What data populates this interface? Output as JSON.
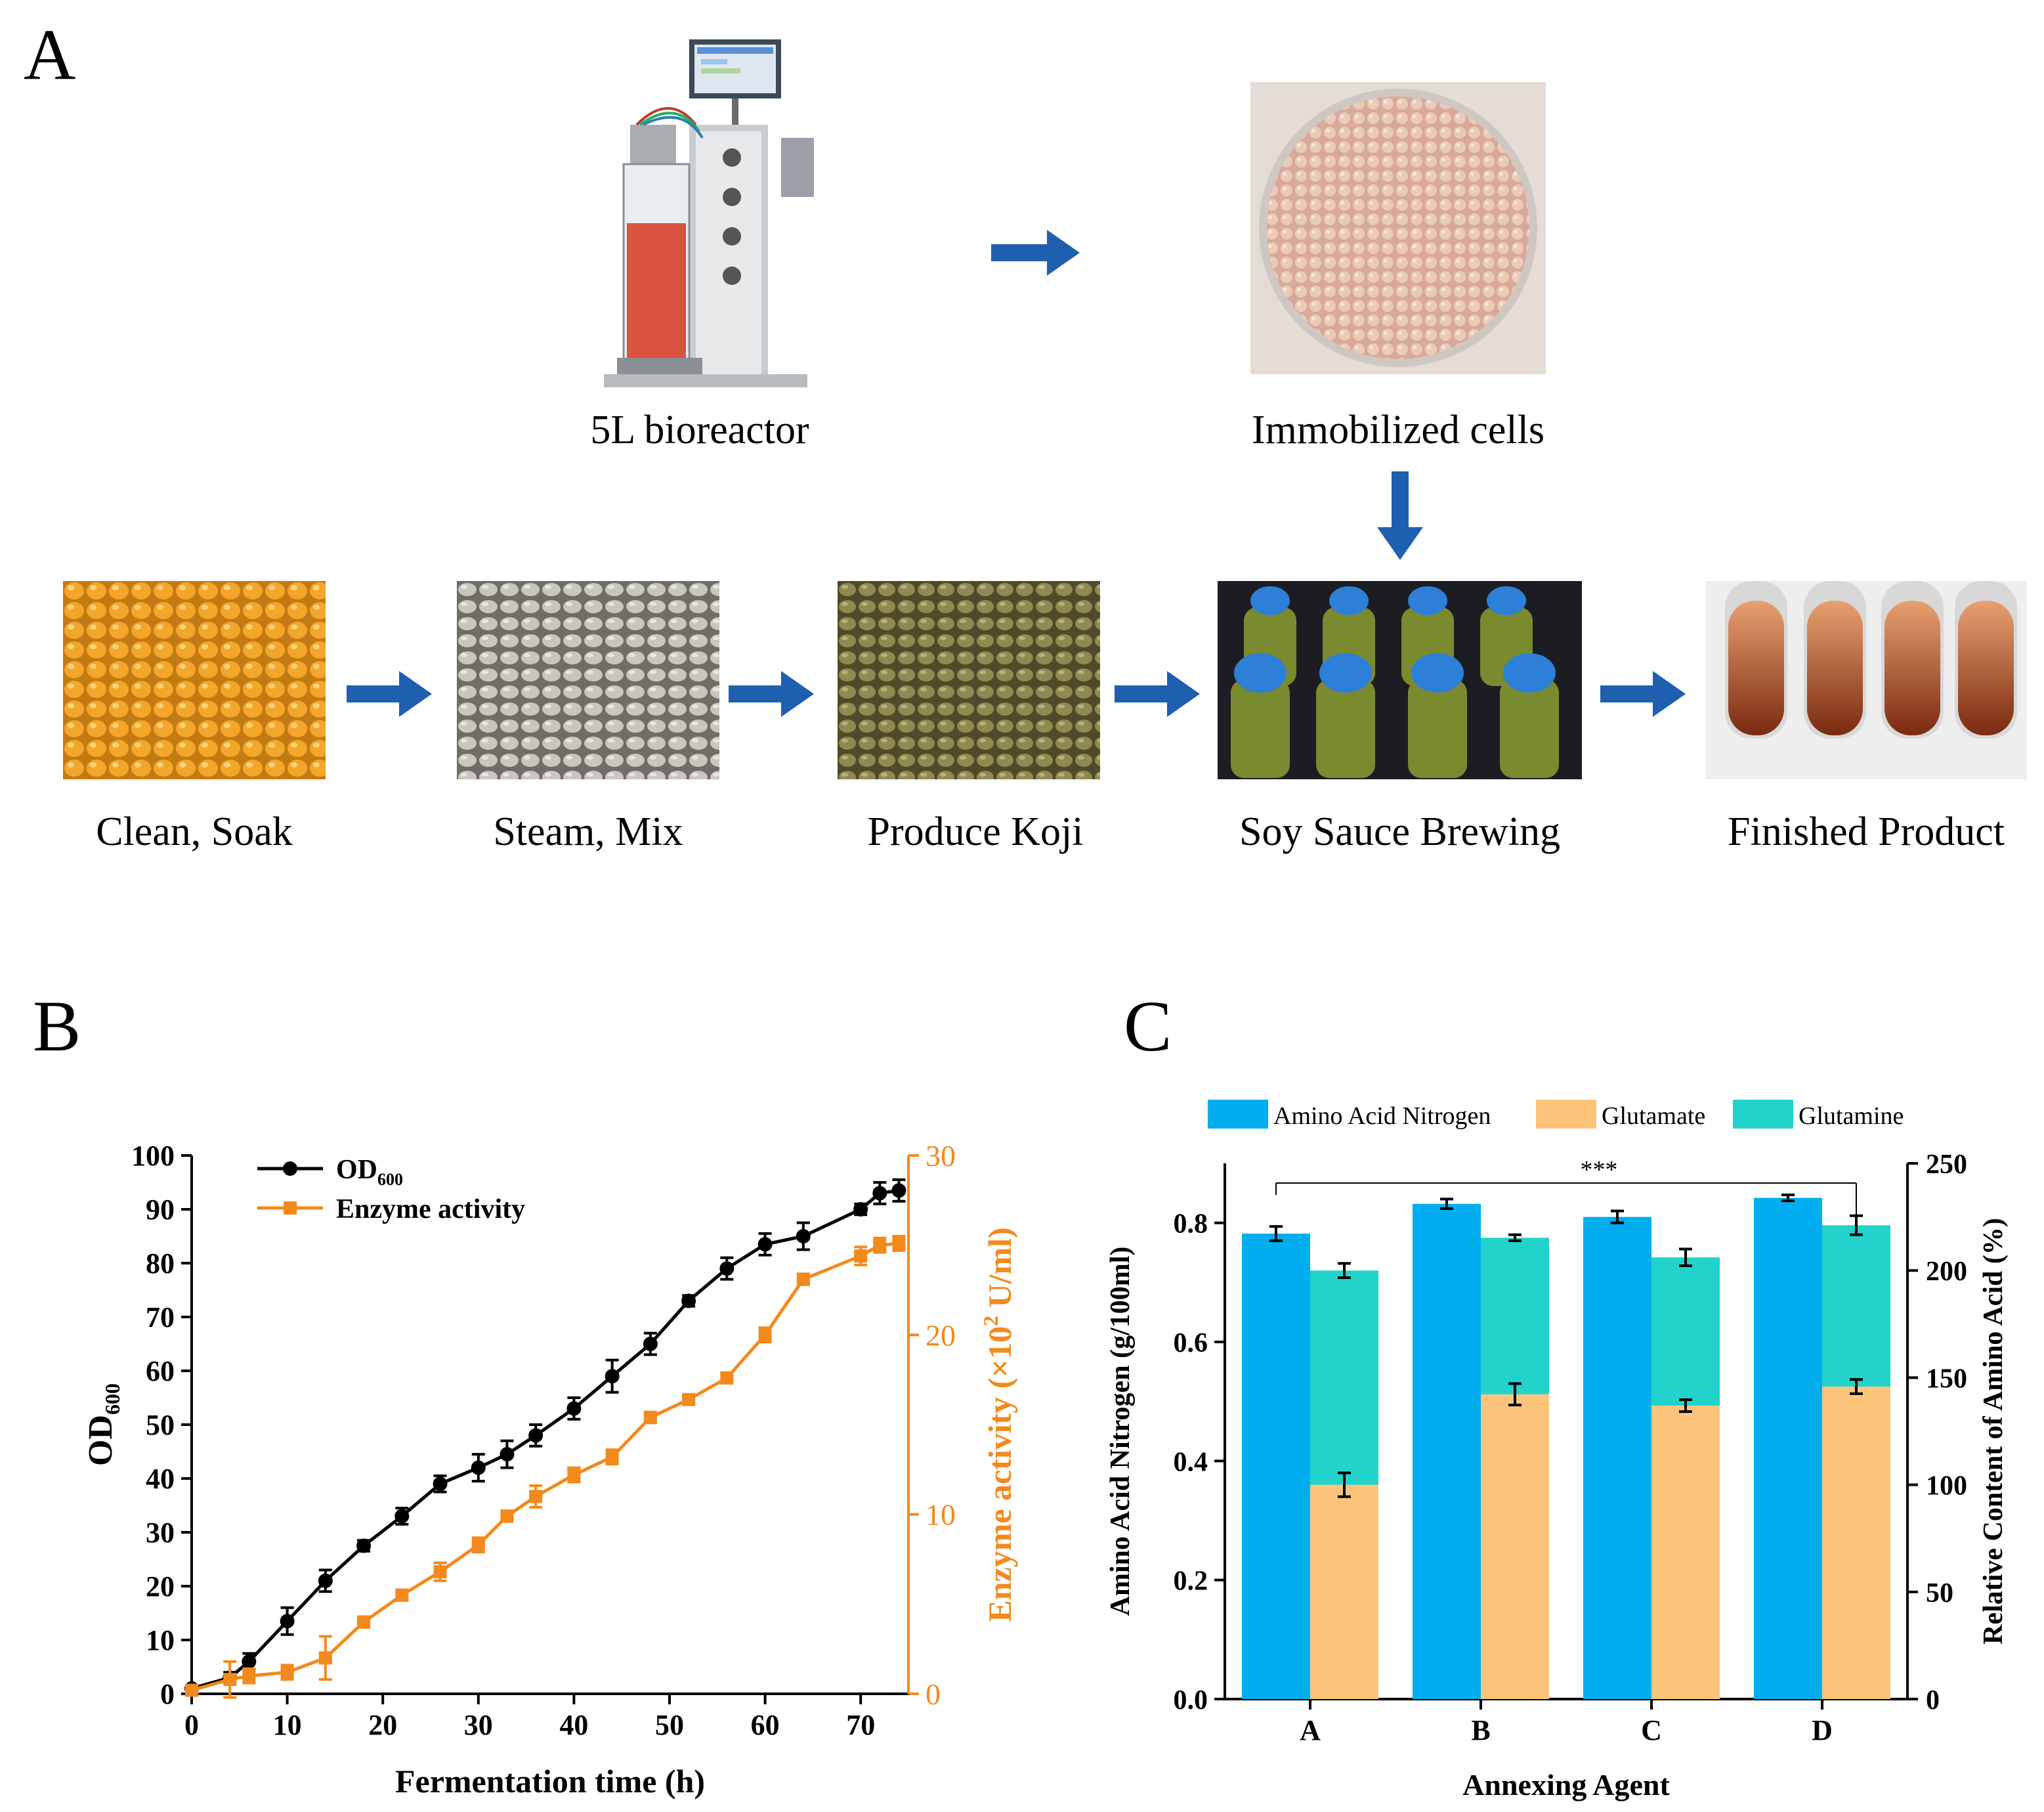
{
  "panels": {
    "a": "A",
    "b": "B",
    "c": "C"
  },
  "panel_a": {
    "captions": {
      "bioreactor": "5L bioreactor",
      "immobilized": "Immobilized cells",
      "clean": "Clean, Soak",
      "steam": "Steam, Mix",
      "koji": "Produce Koji",
      "brewing": "Soy Sauce Brewing",
      "finished": "Finished Product"
    },
    "arrow_color": "#1f5fb0"
  },
  "chart_data": [
    {
      "id": "B",
      "type": "line",
      "xlabel": "Fermentation time (h)",
      "ylabel": "OD",
      "ylabel_sub": "600",
      "y2label": "Enzyme activity (×10",
      "y2label_sup": "2",
      "y2label_tail": " U/ml)",
      "xlim": [
        0,
        75
      ],
      "xticks": [
        0,
        10,
        20,
        30,
        40,
        50,
        60,
        70
      ],
      "ylim": [
        0,
        100
      ],
      "yticks": [
        0,
        10,
        20,
        30,
        40,
        50,
        60,
        70,
        80,
        90,
        100
      ],
      "y2lim": [
        0,
        30
      ],
      "y2ticks": [
        0,
        10,
        20,
        30
      ],
      "legend_position": "top-left",
      "series": [
        {
          "name": "OD",
          "name_sub": "600",
          "axis": "left",
          "color": "#000000",
          "marker": "circle",
          "x": [
            0,
            4,
            6,
            10,
            14,
            18,
            22,
            26,
            30,
            33,
            36,
            40,
            44,
            48,
            52,
            56,
            60,
            64,
            70,
            72,
            74
          ],
          "y": [
            1,
            3,
            6,
            13.5,
            21,
            27.5,
            33,
            39,
            42,
            44.5,
            48,
            53,
            59,
            65,
            73,
            79,
            83.5,
            85,
            90,
            93,
            93.5
          ],
          "err": [
            0.5,
            1,
            1.5,
            2.5,
            2,
            1,
            1.5,
            1.5,
            2.5,
            2.5,
            2,
            2,
            3,
            2,
            1,
            2,
            2,
            2.5,
            1,
            2,
            2
          ]
        },
        {
          "name": "Enzyme activity",
          "axis": "right",
          "color": "#f28a1c",
          "marker": "square",
          "x": [
            0,
            4,
            6,
            10,
            14,
            18,
            22,
            26,
            30,
            33,
            36,
            40,
            44,
            48,
            52,
            56,
            60,
            64,
            70,
            72,
            74
          ],
          "y": [
            0.2,
            0.8,
            1,
            1.2,
            2,
            4,
            5.5,
            6.8,
            8.3,
            9.9,
            11,
            12.2,
            13.2,
            15.4,
            16.4,
            17.6,
            20,
            23.1,
            24.4,
            25,
            25.1
          ],
          "err": [
            0.1,
            1,
            0.4,
            0.4,
            1.2,
            0.3,
            0.3,
            0.5,
            0.4,
            0.3,
            0.6,
            0.4,
            0.4,
            0.3,
            0.2,
            0.2,
            0.4,
            0.3,
            0.5,
            0.4,
            0.4
          ]
        }
      ]
    },
    {
      "id": "C",
      "type": "bar",
      "xlabel": "Annexing Agent",
      "ylabel": "Amino Acid Nitrogen (g/100ml)",
      "y2label": "Relative Content of Amino Acid (%)",
      "categories": [
        "A",
        "B",
        "C",
        "D"
      ],
      "ylim": [
        0,
        0.9
      ],
      "yticks": [
        0.0,
        0.2,
        0.4,
        0.6,
        0.8
      ],
      "y2lim": [
        0,
        250
      ],
      "y2ticks": [
        0,
        50,
        100,
        150,
        200,
        250
      ],
      "legend_position": "top",
      "significance": "***",
      "series": [
        {
          "name": "Amino Acid Nitrogen",
          "color": "#00aeef",
          "axis": "left",
          "values": [
            0.782,
            0.832,
            0.81,
            0.842
          ],
          "err": [
            0.012,
            0.008,
            0.01,
            0.005
          ]
        },
        {
          "name": "Glutamate",
          "color": "#fdc57c",
          "axis": "left",
          "values": [
            0.36,
            0.512,
            0.493,
            0.525
          ],
          "err": [
            0.02,
            0.018,
            0.01,
            0.012
          ]
        },
        {
          "name": "Glutamine",
          "color": "#22d3cc",
          "axis": "left",
          "values_top": [
            0.72,
            0.775,
            0.742,
            0.796
          ],
          "err": [
            0.012,
            0.005,
            0.014,
            0.016
          ]
        }
      ]
    }
  ]
}
